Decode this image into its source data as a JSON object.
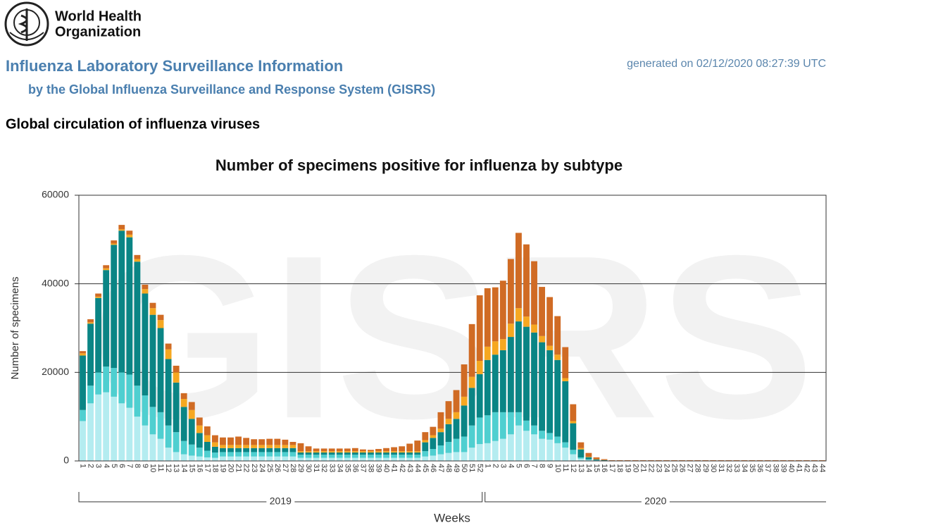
{
  "header": {
    "logo_text": [
      "World Health",
      "Organization"
    ],
    "title": "Influenza Laboratory Surveillance Information",
    "generated": "generated on 02/12/2020 08:27:39 UTC",
    "subtitle": "by the Global Influenza Surveillance and Response System (GISRS)",
    "section": "Global circulation of influenza viruses"
  },
  "chart_data": {
    "type": "stacked_bar",
    "title": "Number of specimens positive for influenza by subtype",
    "watermark": "GISRS",
    "ylabel": "Number of specimens",
    "xlabel": "Weeks",
    "years": [
      "2019",
      "2020"
    ],
    "categories": [
      1,
      2,
      3,
      4,
      5,
      6,
      7,
      8,
      9,
      10,
      11,
      12,
      13,
      14,
      15,
      16,
      17,
      18,
      19,
      20,
      21,
      22,
      23,
      24,
      25,
      26,
      27,
      28,
      29,
      30,
      31,
      32,
      33,
      34,
      35,
      36,
      37,
      38,
      39,
      40,
      41,
      42,
      43,
      44,
      45,
      46,
      47,
      48,
      49,
      50,
      51,
      52,
      1,
      2,
      3,
      4,
      5,
      6,
      7,
      8,
      9,
      10,
      11,
      12,
      13,
      14,
      15,
      16,
      17,
      18,
      19,
      20,
      21,
      22,
      23,
      24,
      25,
      26,
      27,
      28,
      29,
      30,
      31,
      32,
      33,
      34,
      35,
      36,
      37,
      38,
      39,
      40,
      41,
      42,
      43,
      44
    ],
    "ylim": [
      0,
      60000
    ],
    "yticks": [
      0,
      20000,
      40000,
      60000
    ],
    "grid": true,
    "series": [
      {
        "color": "#b4ecf0",
        "values": [
          9000,
          13000,
          15000,
          15500,
          14500,
          13000,
          12000,
          10000,
          8000,
          6000,
          5000,
          3000,
          2000,
          1500,
          1200,
          1000,
          800,
          700,
          1000,
          1000,
          1000,
          1000,
          1000,
          1000,
          1000,
          1000,
          1000,
          1000,
          700,
          700,
          700,
          700,
          700,
          700,
          700,
          700,
          700,
          700,
          700,
          700,
          700,
          700,
          700,
          700,
          1000,
          1200,
          1500,
          1800,
          2000,
          2000,
          3000,
          3800,
          4000,
          4500,
          5000,
          6000,
          8000,
          6800,
          6000,
          5000,
          4800,
          4000,
          3000,
          1500,
          500,
          200,
          100,
          50,
          20,
          20,
          20,
          20,
          20,
          20,
          20,
          20,
          20,
          20,
          20,
          20,
          20,
          20,
          20,
          20,
          20,
          20,
          20,
          20,
          20,
          20,
          20,
          20,
          20,
          20,
          20,
          20
        ]
      },
      {
        "color": "#4fcfd0",
        "values": [
          2500,
          4000,
          5000,
          5800,
          6500,
          7000,
          7500,
          7000,
          6800,
          6200,
          6000,
          5000,
          4500,
          3000,
          2500,
          2000,
          1500,
          1200,
          1000,
          1000,
          1000,
          1000,
          1000,
          1000,
          1000,
          1000,
          1000,
          1000,
          700,
          700,
          700,
          700,
          700,
          700,
          700,
          700,
          700,
          700,
          700,
          700,
          700,
          700,
          700,
          700,
          1200,
          1500,
          2000,
          2500,
          3000,
          3500,
          5000,
          6000,
          6300,
          6500,
          6000,
          5000,
          3000,
          2300,
          2000,
          1800,
          1500,
          1500,
          1200,
          1000,
          300,
          150,
          50,
          30,
          10,
          10,
          10,
          10,
          10,
          10,
          10,
          10,
          10,
          10,
          10,
          10,
          10,
          10,
          10,
          10,
          10,
          10,
          10,
          10,
          10,
          10,
          10,
          10,
          10,
          10,
          10,
          10
        ]
      },
      {
        "color": "#0a8585",
        "values": [
          12300,
          14000,
          16800,
          21800,
          27800,
          32000,
          31000,
          28000,
          23000,
          20800,
          19000,
          15000,
          11200,
          7700,
          5800,
          3300,
          2000,
          1300,
          900,
          900,
          900,
          900,
          900,
          900,
          900,
          900,
          900,
          900,
          500,
          500,
          500,
          500,
          500,
          500,
          500,
          500,
          500,
          500,
          500,
          500,
          500,
          500,
          500,
          500,
          2000,
          2500,
          3000,
          4000,
          4500,
          7000,
          8500,
          9800,
          12500,
          13000,
          14000,
          17000,
          20500,
          21200,
          21000,
          20000,
          18700,
          17300,
          13800,
          6000,
          1800,
          500,
          200,
          100,
          30,
          30,
          30,
          30,
          30,
          30,
          30,
          30,
          30,
          30,
          30,
          30,
          30,
          30,
          30,
          30,
          30,
          30,
          30,
          30,
          30,
          30,
          30,
          30,
          30,
          30,
          30,
          30
        ]
      },
      {
        "color": "#f6a821",
        "values": [
          500,
          300,
          300,
          400,
          300,
          300,
          600,
          600,
          1000,
          1500,
          1800,
          2200,
          2300,
          1800,
          2000,
          1700,
          1500,
          1000,
          700,
          700,
          700,
          700,
          700,
          700,
          700,
          700,
          700,
          700,
          300,
          300,
          300,
          300,
          300,
          300,
          300,
          300,
          300,
          300,
          300,
          300,
          300,
          300,
          300,
          300,
          500,
          600,
          800,
          1200,
          1500,
          2000,
          2500,
          3000,
          3000,
          3000,
          2500,
          3000,
          3000,
          2300,
          1800,
          1400,
          1000,
          1200,
          700,
          500,
          300,
          100,
          50,
          20,
          10,
          10,
          10,
          10,
          10,
          10,
          10,
          10,
          10,
          10,
          10,
          10,
          10,
          10,
          10,
          10,
          10,
          10,
          10,
          10,
          10,
          10,
          10,
          10,
          10,
          10,
          10,
          10
        ]
      },
      {
        "color": "#d06b24",
        "values": [
          500,
          700,
          700,
          700,
          700,
          1000,
          900,
          900,
          1000,
          1200,
          1200,
          1300,
          1500,
          1300,
          1800,
          1800,
          2000,
          1600,
          1700,
          1700,
          1900,
          1600,
          1300,
          1300,
          1400,
          1400,
          1200,
          700,
          1800,
          1100,
          600,
          600,
          600,
          600,
          600,
          700,
          400,
          300,
          500,
          700,
          900,
          1100,
          1700,
          2400,
          1800,
          1900,
          3700,
          4000,
          5000,
          7300,
          11900,
          14800,
          13200,
          12200,
          13200,
          14600,
          17000,
          16300,
          14300,
          11100,
          11000,
          8700,
          7000,
          3800,
          1300,
          850,
          400,
          200,
          80,
          80,
          80,
          80,
          80,
          80,
          80,
          80,
          80,
          80,
          80,
          80,
          80,
          80,
          80,
          80,
          80,
          80,
          80,
          80,
          80,
          80,
          80,
          80,
          80,
          80,
          80,
          80
        ]
      }
    ]
  }
}
